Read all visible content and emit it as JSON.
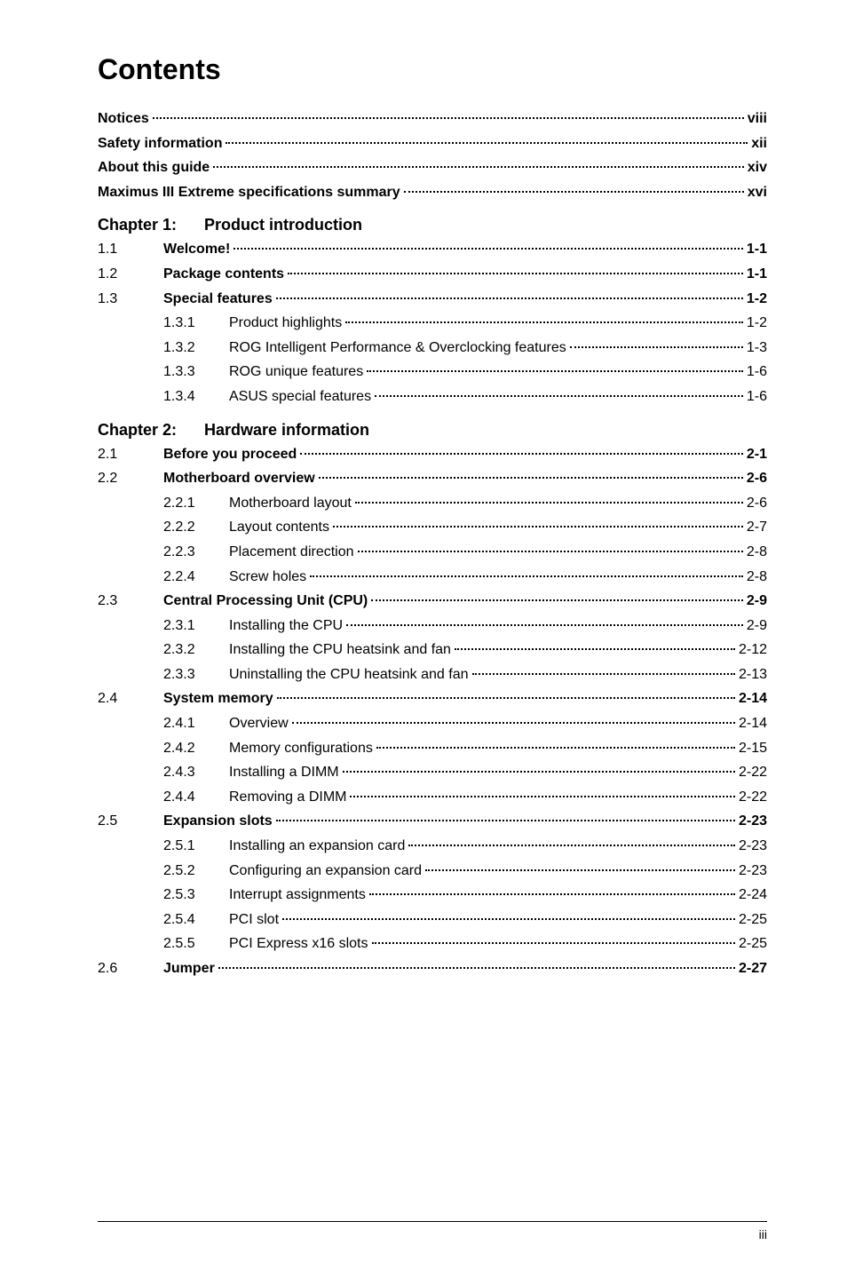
{
  "title": "Contents",
  "front": [
    {
      "label": "Notices",
      "page": "viii"
    },
    {
      "label": "Safety information",
      "page": "xii"
    },
    {
      "label": "About this guide",
      "page": "xiv"
    },
    {
      "label": "Maximus III Extreme specifications summary",
      "page": "xvi"
    }
  ],
  "chapters": [
    {
      "num": "Chapter 1:",
      "title": "Product introduction",
      "sections": [
        {
          "num": "1.1",
          "label": "Welcome!",
          "page": "1-1",
          "bold": true
        },
        {
          "num": "1.2",
          "label": "Package contents",
          "page": "1-1",
          "bold": true
        },
        {
          "num": "1.3",
          "label": "Special features",
          "page": "1-2",
          "bold": true
        },
        {
          "num": "1.3.1",
          "label": "Product highlights",
          "page": "1-2",
          "bold": false,
          "sub": true
        },
        {
          "num": "1.3.2",
          "label": "ROG Intelligent Performance & Overclocking features",
          "page": "1-3",
          "bold": false,
          "sub": true
        },
        {
          "num": "1.3.3",
          "label": "ROG unique features",
          "page": "1-6",
          "bold": false,
          "sub": true
        },
        {
          "num": "1.3.4",
          "label": "ASUS special features",
          "page": "1-6",
          "bold": false,
          "sub": true
        }
      ]
    },
    {
      "num": "Chapter 2:",
      "title": "Hardware information",
      "sections": [
        {
          "num": "2.1",
          "label": "Before you proceed",
          "page": "2-1",
          "bold": true
        },
        {
          "num": "2.2",
          "label": "Motherboard overview",
          "page": "2-6",
          "bold": true
        },
        {
          "num": "2.2.1",
          "label": "Motherboard layout",
          "page": "2-6",
          "bold": false,
          "sub": true
        },
        {
          "num": "2.2.2",
          "label": "Layout contents",
          "page": "2-7",
          "bold": false,
          "sub": true
        },
        {
          "num": "2.2.3",
          "label": "Placement direction",
          "page": "2-8",
          "bold": false,
          "sub": true
        },
        {
          "num": "2.2.4",
          "label": "Screw holes",
          "page": "2-8",
          "bold": false,
          "sub": true
        },
        {
          "num": "2.3",
          "label": "Central Processing Unit (CPU)",
          "page": "2-9",
          "bold": true
        },
        {
          "num": "2.3.1",
          "label": "Installing the CPU",
          "page": "2-9",
          "bold": false,
          "sub": true
        },
        {
          "num": "2.3.2",
          "label": "Installing the CPU heatsink and fan",
          "page": "2-12",
          "bold": false,
          "sub": true
        },
        {
          "num": "2.3.3",
          "label": "Uninstalling the CPU heatsink and fan",
          "page": "2-13",
          "bold": false,
          "sub": true
        },
        {
          "num": "2.4",
          "label": "System memory",
          "page": "2-14",
          "bold": true
        },
        {
          "num": "2.4.1",
          "label": "Overview",
          "page": "2-14",
          "bold": false,
          "sub": true
        },
        {
          "num": "2.4.2",
          "label": "Memory configurations",
          "page": "2-15",
          "bold": false,
          "sub": true
        },
        {
          "num": "2.4.3",
          "label": "Installing a DIMM",
          "page": "2-22",
          "bold": false,
          "sub": true
        },
        {
          "num": "2.4.4",
          "label": "Removing a DIMM",
          "page": "2-22",
          "bold": false,
          "sub": true
        },
        {
          "num": "2.5",
          "label": "Expansion slots",
          "page": "2-23",
          "bold": true
        },
        {
          "num": "2.5.1",
          "label": "Installing an expansion card",
          "page": "2-23",
          "bold": false,
          "sub": true
        },
        {
          "num": "2.5.2",
          "label": "Configuring an expansion card",
          "page": "2-23",
          "bold": false,
          "sub": true
        },
        {
          "num": "2.5.3",
          "label": "Interrupt assignments",
          "page": "2-24",
          "bold": false,
          "sub": true
        },
        {
          "num": "2.5.4",
          "label": "PCI slot",
          "page": "2-25",
          "bold": false,
          "sub": true
        },
        {
          "num": "2.5.5",
          "label": "PCI Express x16 slots",
          "page": "2-25",
          "bold": false,
          "sub": true
        },
        {
          "num": "2.6",
          "label": "Jumper",
          "page": "2-27",
          "bold": true
        }
      ]
    }
  ],
  "footer_page": "iii"
}
